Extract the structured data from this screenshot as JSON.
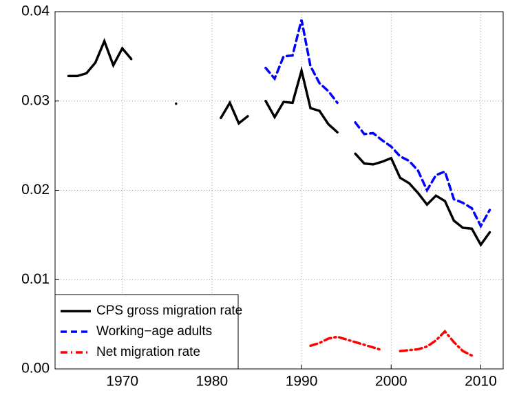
{
  "chart_data": {
    "type": "line",
    "x": [
      1964,
      1965,
      1966,
      1967,
      1968,
      1969,
      1970,
      1971,
      1972,
      1973,
      1974,
      1975,
      1976,
      1977,
      1978,
      1979,
      1980,
      1981,
      1982,
      1983,
      1984,
      1985,
      1986,
      1987,
      1988,
      1989,
      1990,
      1991,
      1992,
      1993,
      1994,
      1995,
      1996,
      1997,
      1998,
      1999,
      2000,
      2001,
      2002,
      2003,
      2004,
      2005,
      2006,
      2007,
      2008,
      2009,
      2010,
      2011
    ],
    "series": [
      {
        "name": "CPS gross migration rate",
        "color": "#000000",
        "dash": "solid",
        "values": [
          0.0328,
          0.0328,
          0.0331,
          0.0343,
          0.0367,
          0.034,
          0.0359,
          0.0347,
          null,
          null,
          null,
          null,
          0.0297,
          null,
          null,
          null,
          null,
          0.0281,
          0.0298,
          0.0275,
          0.0283,
          null,
          0.03,
          0.0282,
          0.0299,
          0.0298,
          0.0334,
          0.0292,
          0.0289,
          0.0274,
          0.0265,
          null,
          0.0241,
          0.023,
          0.0229,
          0.0232,
          0.0236,
          0.0214,
          0.0208,
          0.0197,
          0.0184,
          0.0194,
          0.0188,
          0.0166,
          0.0158,
          0.0157,
          0.0139,
          0.0153
        ]
      },
      {
        "name": "Working−age adults",
        "color": "#0000ff",
        "dash": "dashed",
        "values": [
          null,
          null,
          null,
          null,
          null,
          null,
          null,
          null,
          null,
          null,
          null,
          null,
          null,
          null,
          null,
          null,
          null,
          null,
          null,
          null,
          null,
          null,
          0.0337,
          0.0325,
          0.035,
          0.0351,
          0.0391,
          0.0339,
          0.032,
          0.0311,
          0.0298,
          null,
          0.0276,
          0.0263,
          0.0264,
          0.0256,
          0.0249,
          0.0238,
          0.0233,
          0.0222,
          0.02,
          0.0217,
          0.0221,
          0.019,
          0.0186,
          0.018,
          0.016,
          0.0178
        ]
      },
      {
        "name": "Net migration rate",
        "color": "#ff0000",
        "dash": "dashdot",
        "values": [
          null,
          null,
          null,
          null,
          null,
          null,
          null,
          null,
          null,
          null,
          null,
          null,
          null,
          null,
          null,
          null,
          null,
          null,
          null,
          null,
          null,
          null,
          null,
          null,
          null,
          null,
          null,
          0.0026,
          0.0029,
          0.0034,
          0.0036,
          0.0033,
          0.003,
          0.0027,
          0.0024,
          0.0021,
          null,
          0.002,
          0.0021,
          0.0022,
          0.0025,
          0.0032,
          0.0042,
          0.003,
          0.002,
          0.0015,
          null,
          0.0013
        ]
      }
    ],
    "xlim": [
      1962.5,
      2012.5
    ],
    "xticks": [
      1970,
      1980,
      1990,
      2000,
      2010
    ],
    "ylim": [
      0,
      0.04
    ],
    "yticks": [
      {
        "value": 0,
        "label": "0.00"
      },
      0.01,
      0.02,
      0.03,
      0.04
    ],
    "grid": true,
    "legend": "lower left"
  }
}
